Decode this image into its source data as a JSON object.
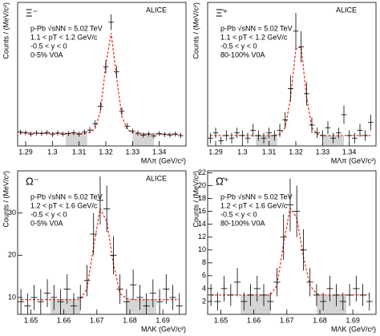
{
  "chart_data": [
    {
      "type": "errorbar",
      "particle": "Ξ⁻",
      "experiment": "ALICE",
      "info": [
        "p-Pb √sNN = 5.02 TeV",
        "1.1 < pT < 1.2 GeV/c",
        "-0.5 < y < 0",
        "0-5% V0A"
      ],
      "x_label": "MΛπ (GeV/c²)",
      "y_label": "Counts / (MeV/c²)",
      "color": "#000000",
      "x": [
        1.288,
        1.29,
        1.292,
        1.294,
        1.296,
        1.298,
        1.3,
        1.302,
        1.304,
        1.306,
        1.308,
        1.31,
        1.312,
        1.314,
        1.316,
        1.318,
        1.32,
        1.322,
        1.324,
        1.326,
        1.328,
        1.33,
        1.332,
        1.334,
        1.336,
        1.338,
        1.34,
        1.342,
        1.344,
        1.346,
        1.348
      ],
      "values": [
        28,
        27,
        24,
        26,
        25,
        27,
        23,
        26,
        24,
        25,
        27,
        24,
        28,
        32,
        45,
        80,
        160,
        250,
        150,
        70,
        40,
        30,
        26,
        22,
        24,
        20,
        25,
        23,
        22,
        24,
        21
      ],
      "errors": [
        5,
        5,
        5,
        5,
        5,
        5,
        5,
        5,
        5,
        5,
        5,
        5,
        5,
        6,
        7,
        9,
        13,
        16,
        12,
        8,
        6,
        5,
        5,
        5,
        5,
        5,
        5,
        5,
        5,
        5,
        5
      ],
      "fit": {
        "color": "#e8392b",
        "values": [
          26,
          26,
          26,
          25.8,
          25.7,
          25.6,
          25.5,
          25.4,
          25.3,
          25.2,
          25.1,
          25,
          25.2,
          27,
          35,
          70,
          165,
          228,
          140,
          60,
          33,
          27,
          24.8,
          24.6,
          24.4,
          24.2,
          24,
          23.9,
          23.8,
          23.7,
          23.6
        ]
      },
      "sidebands": [
        [
          1.305,
          1.313
        ],
        [
          1.33,
          1.338
        ]
      ],
      "xlim": [
        1.287,
        1.35
      ],
      "ylim": [
        0,
        290
      ],
      "xticks": [
        1.29,
        1.3,
        1.31,
        1.32,
        1.33,
        1.34
      ]
    },
    {
      "type": "errorbar",
      "particle": "Ξ̄⁺",
      "experiment": "ALICE",
      "info": [
        "p-Pb √sNN = 5.02 TeV",
        "1.1 < pT < 1.2 GeV/c",
        "-0.5 < y < 0",
        "80-100% V0A"
      ],
      "x_label": "MΛπ (GeV/c²)",
      "y_label": "Counts / (MeV/c²)",
      "color": "#000000",
      "x": [
        1.288,
        1.29,
        1.292,
        1.294,
        1.296,
        1.298,
        1.3,
        1.302,
        1.304,
        1.306,
        1.308,
        1.31,
        1.312,
        1.314,
        1.316,
        1.318,
        1.32,
        1.322,
        1.324,
        1.326,
        1.328,
        1.33,
        1.332,
        1.334,
        1.336,
        1.338,
        1.34,
        1.342,
        1.344,
        1.346,
        1.348
      ],
      "values": [
        3,
        5,
        2,
        4,
        3,
        5,
        4,
        3,
        6,
        4,
        3,
        5,
        4,
        6,
        10,
        22,
        44,
        38,
        20,
        8,
        5,
        4,
        7,
        3,
        5,
        12,
        4,
        3,
        6,
        4,
        9
      ],
      "errors": [
        2,
        2,
        1.5,
        2,
        2,
        2,
        2,
        2,
        2.5,
        2,
        2,
        2,
        2,
        2.5,
        3,
        5,
        7,
        6,
        4.5,
        3,
        2,
        2,
        2.5,
        2,
        2,
        3.5,
        2,
        2,
        2.5,
        2,
        3
      ],
      "fit": {
        "color": "#e8392b",
        "values": [
          4,
          4,
          4,
          4,
          4,
          4,
          4,
          4,
          4,
          4,
          4,
          4,
          4,
          4.5,
          7,
          18,
          37,
          38,
          19,
          7,
          4.5,
          4,
          4,
          4,
          4,
          4,
          4,
          4,
          4,
          4,
          4
        ]
      },
      "sidebands": [
        [
          1.305,
          1.313
        ],
        [
          1.33,
          1.338
        ]
      ],
      "xlim": [
        1.287,
        1.35
      ],
      "ylim": [
        0,
        55
      ],
      "xticks": [
        1.29,
        1.3,
        1.31,
        1.32,
        1.33,
        1.34
      ]
    },
    {
      "type": "errorbar",
      "particle": "Ω⁻",
      "experiment": "ALICE",
      "info": [
        "p-Pb √sNN = 5.02 TeV",
        "1.2 < pT < 1.6 GeV/c",
        "-0.5 < y < 0",
        "0-5% V0A"
      ],
      "x_label": "MΛK (GeV/c²)",
      "y_label": "Counts / (MeV/c²)",
      "color": "#000000",
      "x": [
        1.647,
        1.649,
        1.651,
        1.653,
        1.655,
        1.657,
        1.659,
        1.661,
        1.663,
        1.665,
        1.667,
        1.669,
        1.671,
        1.673,
        1.675,
        1.677,
        1.679,
        1.681,
        1.683,
        1.685,
        1.687,
        1.689,
        1.691,
        1.693,
        1.695
      ],
      "values": [
        9,
        8,
        10,
        9,
        11,
        10,
        9,
        12,
        8,
        10,
        14,
        25,
        33,
        31,
        20,
        12,
        9,
        13,
        10,
        8,
        11,
        9,
        12,
        10,
        8
      ],
      "errors": [
        3,
        3,
        3,
        3,
        3.3,
        3,
        3,
        3.5,
        3,
        3,
        3.7,
        5,
        5.7,
        5.5,
        4.5,
        3.5,
        3,
        3.6,
        3,
        3,
        3.3,
        3,
        3.5,
        3,
        3
      ],
      "fit": {
        "color": "#e8392b",
        "values": [
          9.5,
          9.5,
          9.5,
          9.5,
          9.5,
          9.5,
          9.5,
          9.5,
          9.5,
          9.6,
          12,
          22,
          31,
          28,
          18,
          11,
          9.7,
          9.5,
          9.5,
          9.5,
          9.5,
          9.5,
          9.5,
          9.5,
          9.5
        ]
      },
      "sidebands": [
        [
          1.656,
          1.665
        ],
        [
          1.679,
          1.688
        ]
      ],
      "xlim": [
        1.646,
        1.697
      ],
      "ylim": [
        6,
        40
      ],
      "xticks": [
        1.65,
        1.66,
        1.67,
        1.68,
        1.69
      ],
      "yticks": [
        10,
        20,
        30
      ]
    },
    {
      "type": "errorbar",
      "particle": "Ω̄⁺",
      "info": [
        "p-Pb √sNN = 5.02 TeV",
        "1.2 < pT < 1.6 GeV/c",
        "-0.5 < y < 0",
        "80-100% V0A"
      ],
      "x_label": "MΛK (GeV/c²)",
      "y_label": "Counts / (MeV/c²)",
      "color": "#000000",
      "x": [
        1.647,
        1.649,
        1.651,
        1.653,
        1.655,
        1.657,
        1.659,
        1.661,
        1.663,
        1.665,
        1.667,
        1.669,
        1.671,
        1.673,
        1.675,
        1.677,
        1.679,
        1.681,
        1.683,
        1.685,
        1.687,
        1.689,
        1.691,
        1.693,
        1.695
      ],
      "values": [
        3,
        2,
        4,
        3,
        5,
        2,
        3,
        4,
        3,
        2,
        5,
        12,
        17,
        16,
        10,
        5,
        3,
        2,
        4,
        3,
        2,
        3,
        4,
        3,
        2
      ],
      "errors": [
        1.7,
        1.4,
        2,
        1.7,
        2.2,
        1.4,
        1.7,
        2,
        1.7,
        1.4,
        2.2,
        3.5,
        4.1,
        4,
        3.2,
        2.2,
        1.7,
        1.4,
        2,
        1.7,
        1.4,
        1.7,
        2,
        1.7,
        1.4
      ],
      "fit": {
        "color": "#e8392b",
        "values": [
          3,
          3,
          3,
          3,
          3,
          3,
          3,
          3,
          3,
          3,
          4.5,
          11,
          16.5,
          15,
          9,
          4.5,
          3.2,
          3,
          3,
          3,
          3,
          3,
          3,
          3,
          3
        ]
      },
      "sidebands": [
        [
          1.656,
          1.665
        ],
        [
          1.679,
          1.688
        ]
      ],
      "xlim": [
        1.646,
        1.697
      ],
      "ylim": [
        0,
        22.3
      ],
      "xticks": [
        1.65,
        1.66,
        1.67,
        1.68,
        1.69
      ],
      "yticks": [
        2,
        4,
        6,
        8,
        10,
        12,
        14,
        16,
        18,
        20,
        22
      ]
    }
  ]
}
